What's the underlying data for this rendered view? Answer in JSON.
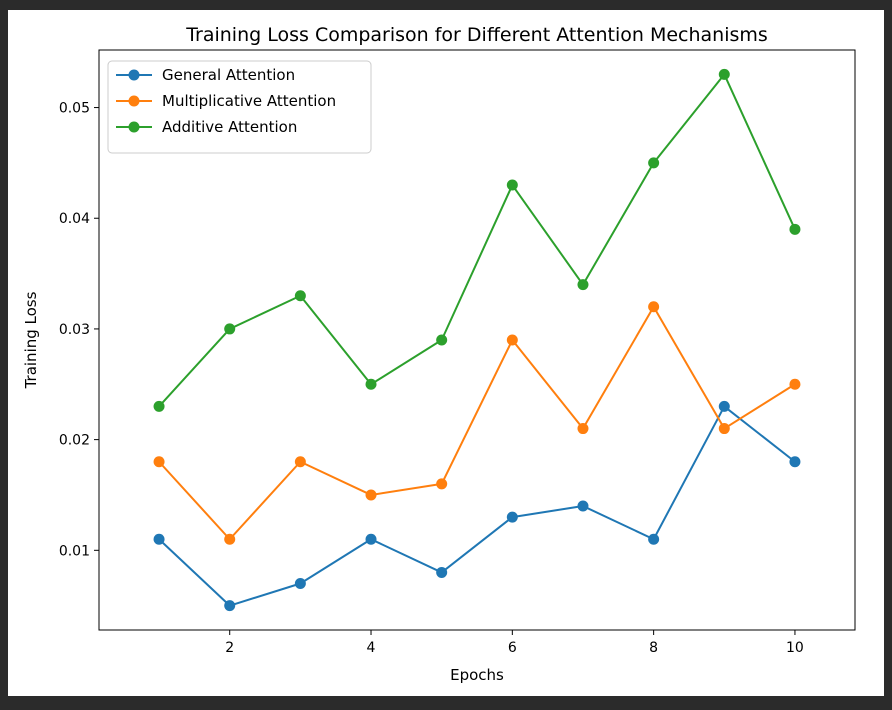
{
  "chart_data": {
    "type": "line",
    "title": "Training Loss Comparison for Different Attention Mechanisms",
    "xlabel": "Epochs",
    "ylabel": "Training Loss",
    "x": [
      1,
      2,
      3,
      4,
      5,
      6,
      7,
      8,
      9,
      10
    ],
    "xlim": [
      0.15,
      10.85
    ],
    "ylim": [
      0.0028,
      0.0552
    ],
    "xticks": [
      2,
      4,
      6,
      8,
      10
    ],
    "xtick_labels": [
      "2",
      "4",
      "6",
      "8",
      "10"
    ],
    "yticks": [
      0.01,
      0.02,
      0.03,
      0.04,
      0.05
    ],
    "ytick_labels": [
      "0.01",
      "0.02",
      "0.03",
      "0.04",
      "0.05"
    ],
    "grid": false,
    "legend_position": "top-left",
    "series": [
      {
        "name": "General Attention",
        "color": "#1f77b4",
        "marker": "circle",
        "values": [
          0.011,
          0.005,
          0.007,
          0.011,
          0.008,
          0.013,
          0.014,
          0.011,
          0.023,
          0.018
        ]
      },
      {
        "name": "Multiplicative Attention",
        "color": "#ff7f0e",
        "marker": "circle",
        "values": [
          0.018,
          0.011,
          0.018,
          0.015,
          0.016,
          0.029,
          0.021,
          0.032,
          0.021,
          0.025
        ]
      },
      {
        "name": "Additive Attention",
        "color": "#2ca02c",
        "marker": "circle",
        "values": [
          0.023,
          0.03,
          0.033,
          0.025,
          0.029,
          0.043,
          0.034,
          0.045,
          0.053,
          0.039
        ]
      }
    ]
  }
}
